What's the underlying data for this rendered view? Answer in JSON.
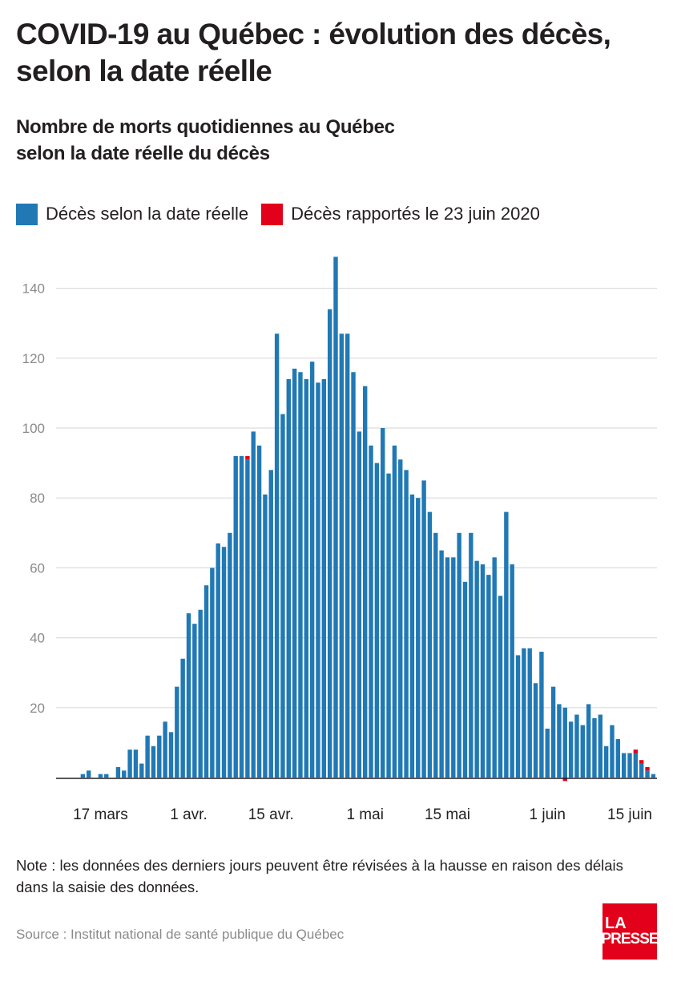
{
  "header": {
    "title": "COVID-19 au Québec : évolution des décès, selon la date réelle",
    "subtitle_line1": "Nombre de morts quotidiennes au Québec",
    "subtitle_line2": "selon la date réelle du décès"
  },
  "legend": {
    "items": [
      {
        "label": "Décès selon la date réelle",
        "color": "#2079b5"
      },
      {
        "label": "Décès rapportés le 23 juin 2020",
        "color": "#e2001a"
      }
    ]
  },
  "chart_data": {
    "type": "bar",
    "stacked": true,
    "x_start": "2020-03-12",
    "x_end": "2020-06-22",
    "x_tick_labels": [
      "17 mars",
      "1 avr.",
      "15 avr.",
      "1 mai",
      "15 mai",
      "1 juin",
      "15 juin"
    ],
    "x_tick_dates": [
      "2020-03-17",
      "2020-04-01",
      "2020-04-15",
      "2020-05-01",
      "2020-05-15",
      "2020-06-01",
      "2020-06-15"
    ],
    "y_ticks": [
      20,
      40,
      60,
      80,
      100,
      120,
      140
    ],
    "ylim": [
      0,
      150
    ],
    "grid": true,
    "series": [
      {
        "name": "Décès selon la date réelle",
        "color": "#2079b5",
        "values": [
          0,
          0,
          1,
          2,
          0,
          1,
          1,
          0,
          3,
          2,
          8,
          8,
          4,
          12,
          9,
          12,
          16,
          13,
          26,
          34,
          47,
          44,
          48,
          55,
          60,
          67,
          66,
          70,
          92,
          92,
          91,
          99,
          95,
          81,
          88,
          127,
          104,
          114,
          117,
          116,
          114,
          119,
          113,
          114,
          134,
          149,
          127,
          127,
          116,
          99,
          112,
          95,
          90,
          100,
          87,
          95,
          91,
          88,
          81,
          80,
          85,
          76,
          70,
          65,
          63,
          63,
          70,
          56,
          70,
          62,
          61,
          58,
          63,
          52,
          76,
          61,
          35,
          37,
          37,
          27,
          36,
          14,
          26,
          21,
          20,
          16,
          18,
          15,
          21,
          17,
          18,
          9,
          15,
          11,
          7,
          7,
          7,
          4,
          2,
          1
        ],
        "neg_values": [
          0,
          0,
          0,
          0,
          0,
          0,
          0,
          0,
          0,
          0,
          0,
          0,
          0,
          0,
          0,
          0,
          0,
          0,
          0,
          0,
          0,
          0,
          0,
          0,
          0,
          0,
          0,
          0,
          0,
          0,
          0,
          0,
          0,
          0,
          0,
          0,
          0,
          0,
          0,
          0,
          0,
          0,
          0,
          0,
          0,
          0,
          0,
          0,
          0,
          0,
          0,
          0,
          0,
          0,
          0,
          0,
          0,
          0,
          0,
          0,
          0,
          0,
          0,
          0,
          0,
          0,
          0,
          0,
          0,
          0,
          0,
          0,
          0,
          0,
          0,
          0,
          0,
          0,
          0,
          0,
          0,
          0,
          0,
          0,
          0,
          0,
          0,
          0,
          0,
          0,
          0,
          0,
          0,
          0,
          0,
          0,
          0,
          0,
          0,
          0,
          0,
          0
        ]
      },
      {
        "name": "Décès rapportés le 23 juin 2020",
        "color": "#e2001a",
        "values": [
          0,
          0,
          0,
          0,
          0,
          0,
          0,
          0,
          0,
          0,
          0,
          0,
          0,
          0,
          0,
          0,
          0,
          0,
          0,
          0,
          0,
          0,
          0,
          0,
          0,
          0,
          0,
          0,
          0,
          0,
          1,
          0,
          0,
          0,
          0,
          0,
          0,
          0,
          0,
          0,
          0,
          0,
          0,
          0,
          0,
          0,
          0,
          0,
          0,
          0,
          0,
          0,
          0,
          0,
          0,
          0,
          0,
          0,
          0,
          0,
          0,
          0,
          0,
          0,
          0,
          0,
          0,
          0,
          0,
          0,
          0,
          0,
          0,
          0,
          0,
          0,
          0,
          0,
          0,
          0,
          0,
          0,
          0,
          0,
          0,
          0,
          0,
          0,
          0,
          0,
          0,
          0,
          0,
          0,
          0,
          0,
          1,
          1,
          1,
          0
        ],
        "neg_values": [
          0,
          0,
          0,
          0,
          0,
          0,
          0,
          0,
          0,
          0,
          0,
          0,
          0,
          0,
          0,
          0,
          0,
          0,
          0,
          0,
          0,
          0,
          0,
          0,
          0,
          0,
          0,
          0,
          0,
          0,
          0,
          0,
          0,
          0,
          0,
          0,
          0,
          0,
          0,
          0,
          0,
          0,
          0,
          0,
          0,
          0,
          0,
          0,
          0,
          0,
          0,
          0,
          0,
          0,
          0,
          0,
          0,
          0,
          0,
          0,
          0,
          0,
          0,
          0,
          0,
          0,
          0,
          0,
          0,
          0,
          0,
          0,
          0,
          0,
          0,
          0,
          0,
          0,
          0,
          0,
          0,
          0,
          0,
          0,
          1,
          0,
          0,
          0,
          0,
          0,
          0,
          0,
          0,
          0,
          0,
          0,
          0,
          0,
          0,
          0,
          0
        ]
      }
    ]
  },
  "footer": {
    "note": "Note : les données des derniers jours peuvent être révisées à la hausse en raison des délais dans la saisie des données.",
    "source": "Source : Institut national de santé publique du Québec",
    "logo_line1": "LA",
    "logo_line2": "PRESSE"
  }
}
